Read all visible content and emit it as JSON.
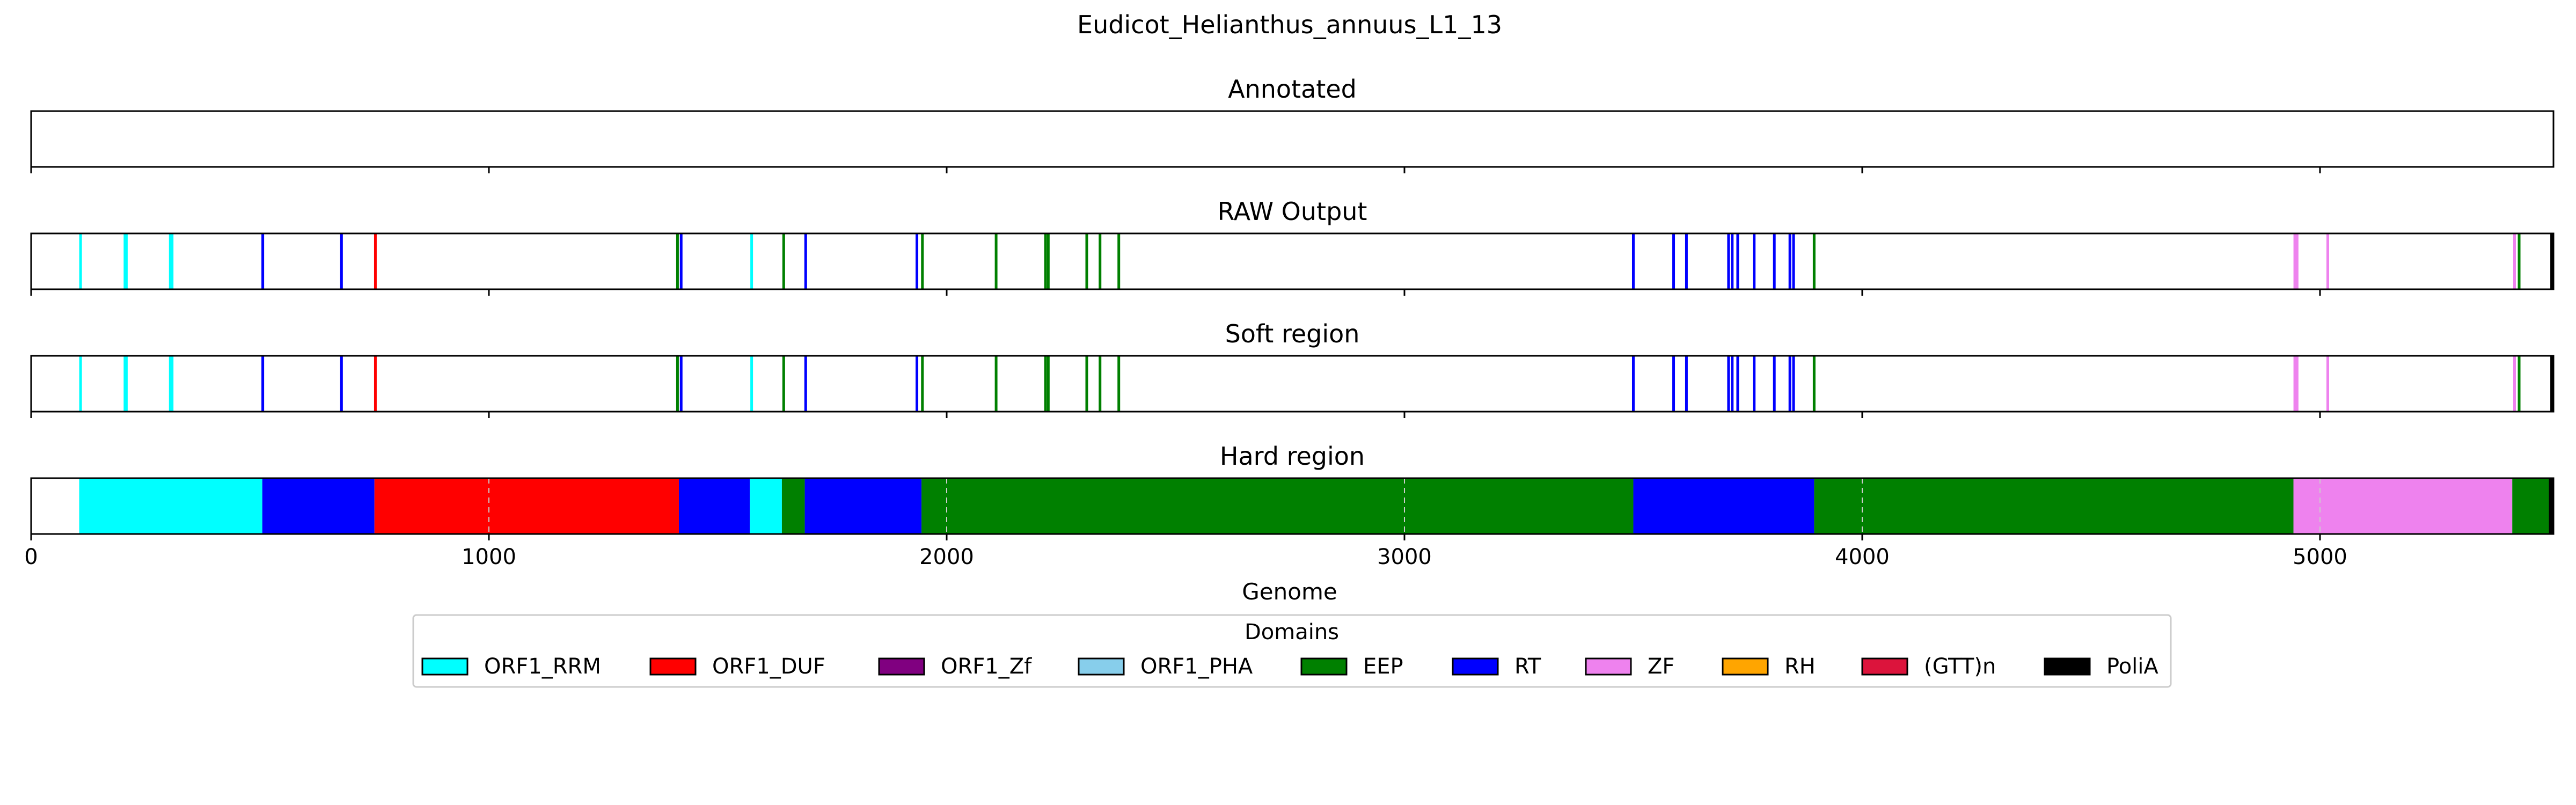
{
  "chart_data": {
    "type": "bar",
    "title": "Eudicot_Helianthus_annuus_L1_13",
    "xlabel": "Genome",
    "xlim": [
      0,
      5510
    ],
    "x_ticks": [
      0,
      1000,
      2000,
      3000,
      4000,
      5000
    ],
    "grid": "dashed vertical lines in the Hard region panel",
    "legend": {
      "title": "Domains",
      "placement": "bottom-center",
      "entries": [
        {
          "name": "ORF1_RRM",
          "color": "#00FFFF"
        },
        {
          "name": "ORF1_DUF",
          "color": "#FF0000"
        },
        {
          "name": "ORF1_Zf",
          "color": "#800080"
        },
        {
          "name": "ORF1_PHA",
          "color": "#87CEEB"
        },
        {
          "name": "EEP",
          "color": "#008000"
        },
        {
          "name": "RT",
          "color": "#0000FF"
        },
        {
          "name": "ZF",
          "color": "#EE82EE"
        },
        {
          "name": "RH",
          "color": "#FFA500"
        },
        {
          "name": "(GTT)n",
          "color": "#DC143C"
        },
        {
          "name": "PoliA",
          "color": "#000000"
        }
      ]
    },
    "panels": [
      {
        "title": "Annotated",
        "kind": "lines",
        "marks": []
      },
      {
        "title": "RAW Output",
        "kind": "lines",
        "marks": [
          {
            "x": 108,
            "domain": "ORF1_RRM"
          },
          {
            "x": 205,
            "domain": "ORF1_RRM"
          },
          {
            "x": 208,
            "domain": "ORF1_RRM"
          },
          {
            "x": 304,
            "domain": "ORF1_RRM"
          },
          {
            "x": 308,
            "domain": "ORF1_RRM"
          },
          {
            "x": 506,
            "domain": "RT"
          },
          {
            "x": 678,
            "domain": "RT"
          },
          {
            "x": 752,
            "domain": "ORF1_DUF"
          },
          {
            "x": 1412,
            "domain": "EEP"
          },
          {
            "x": 1420,
            "domain": "RT"
          },
          {
            "x": 1574,
            "domain": "ORF1_RRM"
          },
          {
            "x": 1644,
            "domain": "EEP"
          },
          {
            "x": 1692,
            "domain": "RT"
          },
          {
            "x": 1935,
            "domain": "RT"
          },
          {
            "x": 1947,
            "domain": "EEP"
          },
          {
            "x": 2108,
            "domain": "EEP"
          },
          {
            "x": 2216,
            "domain": "EEP"
          },
          {
            "x": 2222,
            "domain": "EEP"
          },
          {
            "x": 2306,
            "domain": "EEP"
          },
          {
            "x": 2335,
            "domain": "EEP"
          },
          {
            "x": 2376,
            "domain": "EEP"
          },
          {
            "x": 3500,
            "domain": "RT"
          },
          {
            "x": 3588,
            "domain": "RT"
          },
          {
            "x": 3616,
            "domain": "RT"
          },
          {
            "x": 3708,
            "domain": "RT"
          },
          {
            "x": 3716,
            "domain": "RT"
          },
          {
            "x": 3728,
            "domain": "RT"
          },
          {
            "x": 3764,
            "domain": "RT"
          },
          {
            "x": 3808,
            "domain": "RT"
          },
          {
            "x": 3842,
            "domain": "RT"
          },
          {
            "x": 3850,
            "domain": "RT"
          },
          {
            "x": 3895,
            "domain": "EEP"
          },
          {
            "x": 4945,
            "domain": "ZF"
          },
          {
            "x": 4950,
            "domain": "ZF"
          },
          {
            "x": 5017,
            "domain": "ZF"
          },
          {
            "x": 5425,
            "domain": "ZF"
          },
          {
            "x": 5435,
            "domain": "EEP"
          },
          {
            "x": 5506,
            "domain": "PoliA"
          }
        ]
      },
      {
        "title": "Soft region",
        "kind": "lines",
        "marks": [
          {
            "x": 108,
            "domain": "ORF1_RRM"
          },
          {
            "x": 205,
            "domain": "ORF1_RRM"
          },
          {
            "x": 208,
            "domain": "ORF1_RRM"
          },
          {
            "x": 304,
            "domain": "ORF1_RRM"
          },
          {
            "x": 308,
            "domain": "ORF1_RRM"
          },
          {
            "x": 506,
            "domain": "RT"
          },
          {
            "x": 678,
            "domain": "RT"
          },
          {
            "x": 752,
            "domain": "ORF1_DUF"
          },
          {
            "x": 1412,
            "domain": "EEP"
          },
          {
            "x": 1420,
            "domain": "RT"
          },
          {
            "x": 1574,
            "domain": "ORF1_RRM"
          },
          {
            "x": 1644,
            "domain": "EEP"
          },
          {
            "x": 1692,
            "domain": "RT"
          },
          {
            "x": 1935,
            "domain": "RT"
          },
          {
            "x": 1947,
            "domain": "EEP"
          },
          {
            "x": 2108,
            "domain": "EEP"
          },
          {
            "x": 2216,
            "domain": "EEP"
          },
          {
            "x": 2222,
            "domain": "EEP"
          },
          {
            "x": 2306,
            "domain": "EEP"
          },
          {
            "x": 2335,
            "domain": "EEP"
          },
          {
            "x": 2376,
            "domain": "EEP"
          },
          {
            "x": 3500,
            "domain": "RT"
          },
          {
            "x": 3588,
            "domain": "RT"
          },
          {
            "x": 3616,
            "domain": "RT"
          },
          {
            "x": 3708,
            "domain": "RT"
          },
          {
            "x": 3716,
            "domain": "RT"
          },
          {
            "x": 3728,
            "domain": "RT"
          },
          {
            "x": 3764,
            "domain": "RT"
          },
          {
            "x": 3808,
            "domain": "RT"
          },
          {
            "x": 3842,
            "domain": "RT"
          },
          {
            "x": 3850,
            "domain": "RT"
          },
          {
            "x": 3895,
            "domain": "EEP"
          },
          {
            "x": 4945,
            "domain": "ZF"
          },
          {
            "x": 4950,
            "domain": "ZF"
          },
          {
            "x": 5017,
            "domain": "ZF"
          },
          {
            "x": 5425,
            "domain": "ZF"
          },
          {
            "x": 5435,
            "domain": "EEP"
          },
          {
            "x": 5506,
            "domain": "PoliA"
          }
        ]
      },
      {
        "title": "Hard region",
        "kind": "segments",
        "segments": [
          {
            "start": 105,
            "end": 505,
            "domain": "ORF1_RRM"
          },
          {
            "start": 505,
            "end": 750,
            "domain": "RT"
          },
          {
            "start": 750,
            "end": 1415,
            "domain": "ORF1_DUF"
          },
          {
            "start": 1415,
            "end": 1570,
            "domain": "RT"
          },
          {
            "start": 1570,
            "end": 1640,
            "domain": "ORF1_RRM"
          },
          {
            "start": 1640,
            "end": 1690,
            "domain": "EEP"
          },
          {
            "start": 1690,
            "end": 1945,
            "domain": "RT"
          },
          {
            "start": 1945,
            "end": 3500,
            "domain": "EEP"
          },
          {
            "start": 3500,
            "end": 3895,
            "domain": "RT"
          },
          {
            "start": 3895,
            "end": 4942,
            "domain": "EEP"
          },
          {
            "start": 4942,
            "end": 5420,
            "domain": "ZF"
          },
          {
            "start": 5420,
            "end": 5500,
            "domain": "EEP"
          },
          {
            "start": 5500,
            "end": 5510,
            "domain": "PoliA"
          }
        ]
      }
    ]
  }
}
